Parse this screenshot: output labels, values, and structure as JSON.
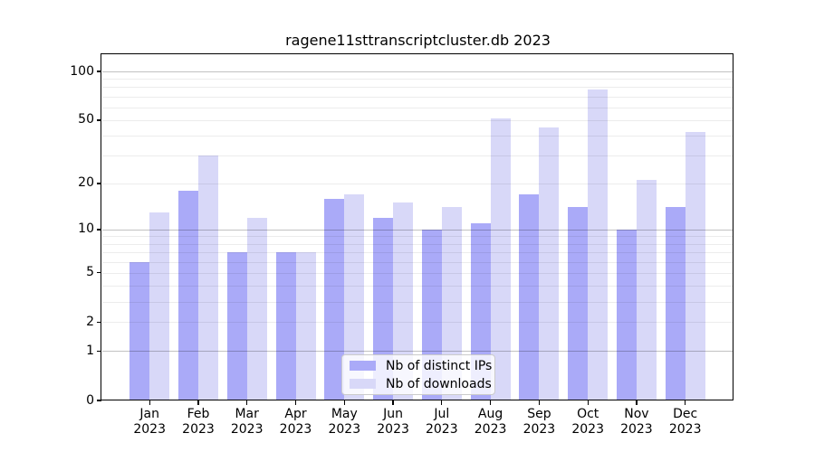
{
  "title": "ragene11sttranscriptcluster.db 2023",
  "chart_data": {
    "type": "bar",
    "title": "ragene11sttranscriptcluster.db 2023",
    "categories": [
      "Jan",
      "Feb",
      "Mar",
      "Apr",
      "May",
      "Jun",
      "Jul",
      "Aug",
      "Sep",
      "Oct",
      "Nov",
      "Dec"
    ],
    "year": "2023",
    "series": [
      {
        "name": "Nb of distinct IPs",
        "color": "#aaaaf8",
        "values": [
          6,
          18,
          7,
          7,
          16,
          12,
          10,
          11,
          17,
          14,
          10,
          14
        ]
      },
      {
        "name": "Nb of downloads",
        "color": "#d8d8f8",
        "values": [
          13,
          30,
          12,
          7,
          17,
          15,
          14,
          51,
          45,
          77,
          21,
          42
        ]
      }
    ],
    "xlabel": "",
    "ylabel": "",
    "yscale": "log1p",
    "ylim": [
      0,
      126
    ],
    "yticks": [
      {
        "v": 100,
        "label": "100"
      },
      {
        "v": 50,
        "label": "50"
      },
      {
        "v": 20,
        "label": "20"
      },
      {
        "v": 10,
        "label": "10"
      },
      {
        "v": 5,
        "label": "5"
      },
      {
        "v": 2,
        "label": "2"
      },
      {
        "v": 1,
        "label": "1"
      },
      {
        "v": 0,
        "label": "0"
      }
    ],
    "gridlines": {
      "major": [
        1,
        10,
        100
      ],
      "minor": [
        2,
        3,
        4,
        5,
        6,
        7,
        8,
        9,
        20,
        30,
        40,
        50,
        60,
        70,
        80,
        90
      ]
    },
    "grid": "horizontal",
    "legend_position": "bottom-center"
  }
}
